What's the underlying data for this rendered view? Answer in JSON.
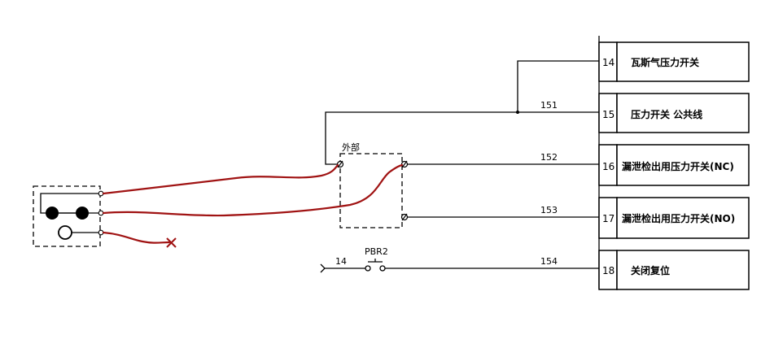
{
  "terminals": [
    {
      "num": "14",
      "label": "瓦斯气压力开关"
    },
    {
      "num": "15",
      "label": "压力开关 公共线"
    },
    {
      "num": "16",
      "label": "漏泄检出用压力开关(NC)"
    },
    {
      "num": "17",
      "label": "漏泄检出用压力开关(NO)"
    },
    {
      "num": "18",
      "label": "关闭复位"
    }
  ],
  "wires": {
    "w151": "151",
    "w152": "152",
    "w153": "153",
    "w154": "154",
    "w14": "14"
  },
  "external_label": "外部",
  "pushbutton_label": "PBR2"
}
